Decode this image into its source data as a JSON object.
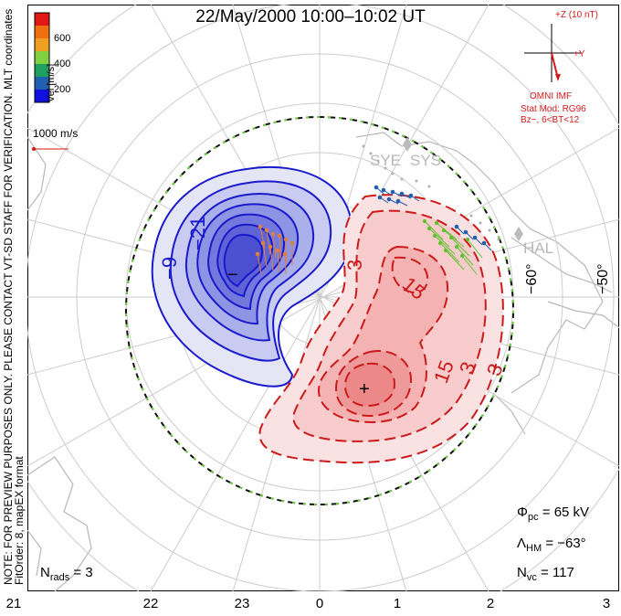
{
  "title": "22/May/2000 10:00–10:02 UT",
  "colorbar": {
    "title": "Vel [m/s]",
    "ticks": [
      "600",
      "400",
      "200"
    ],
    "colors": [
      "#e01818",
      "#f07010",
      "#f0a020",
      "#80d040",
      "#20a060",
      "#2060b0",
      "#1010e0"
    ]
  },
  "mlt_label": "MLT coordinates",
  "scale_label": "1000 m/s",
  "side_note": {
    "line1": "NOTE: FOR PREVIEW PURPOSES ONLY. PLEASE CONTACT VT-SD STAFF FOR VERIFICATION.",
    "line2": "FitOrder: 8, mapEX format"
  },
  "imf": {
    "z_label": "+Z (10 nT)",
    "y_label": "+Y",
    "source": "OMNI IMF",
    "model_line1": "Stat Mod: RG96",
    "model_line2": "Bz−, 6<BT<12"
  },
  "stations": [
    "SYE",
    "SYS",
    "HAL"
  ],
  "latitude_labels": [
    "−60°",
    "−50°"
  ],
  "contour_labels": {
    "negative": [
      "−9",
      "−21",
      "−"
    ],
    "positive": [
      "3",
      "15",
      "15",
      "3",
      "3",
      "+"
    ]
  },
  "stats": {
    "phi_pc": {
      "symbol": "Φ",
      "sub": "pc",
      "value": "= 65 kV"
    },
    "lambda_hm": {
      "symbol": "Λ",
      "sub": "HM",
      "value": "= −63°"
    },
    "n_vc": {
      "symbol": "N",
      "sub": "vc",
      "value": "= 117"
    },
    "n_rads": {
      "symbol": "N",
      "sub": "rads",
      "value": "= 3"
    }
  },
  "mlt_ticks": [
    "21",
    "22",
    "23",
    "0",
    "1",
    "2",
    "3"
  ],
  "colors": {
    "negative_fill": "#5050e0",
    "positive_fill": "#f08080",
    "negative_line": "#1a1acc",
    "positive_line": "#cc1a1a",
    "grid": "#c8c8c8",
    "text_red": "#d41a1a"
  }
}
